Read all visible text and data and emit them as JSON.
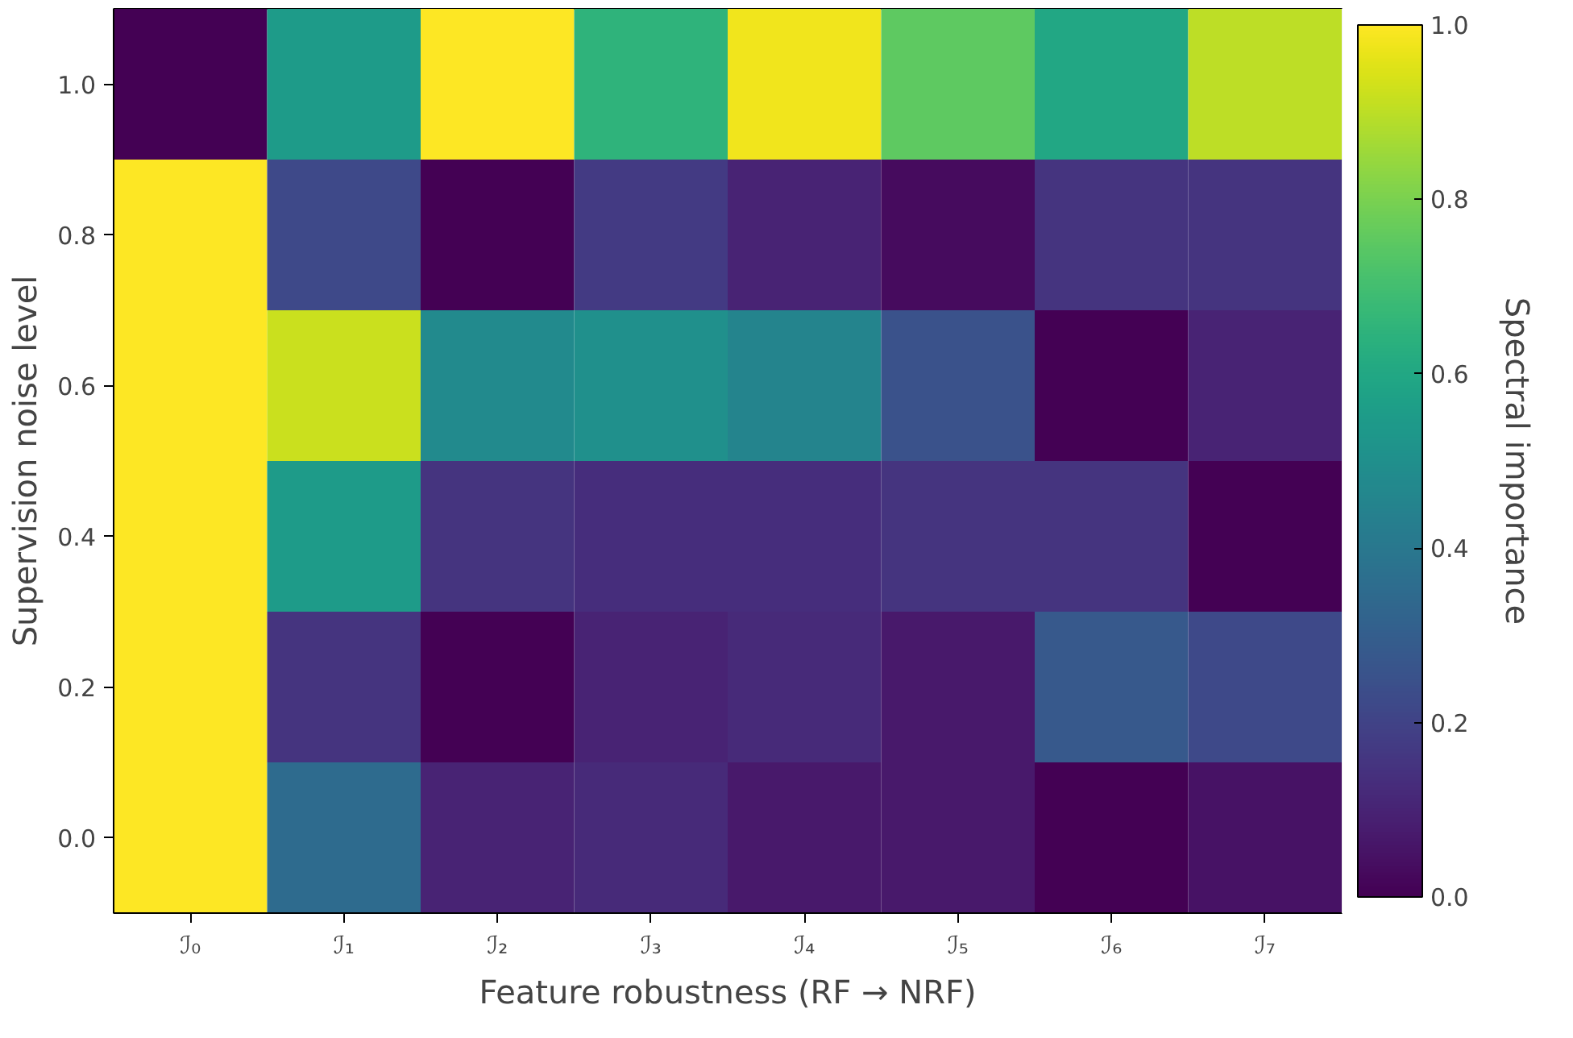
{
  "chart_data": {
    "type": "heatmap",
    "xlabel": "Feature robustness (RF → NRF)",
    "ylabel": "Supervision noise level",
    "clabel": "Spectral importance",
    "categories": [
      "ℐ₀",
      "ℐ₁",
      "ℐ₂",
      "ℐ₃",
      "ℐ₄",
      "ℐ₅",
      "ℐ₆",
      "ℐ₇"
    ],
    "y_categories": [
      "1.0",
      "0.8",
      "0.6",
      "0.4",
      "0.2",
      "0.0"
    ],
    "cells": [
      [
        0.0,
        0.55,
        1.0,
        0.65,
        0.98,
        0.75,
        0.6,
        0.9
      ],
      [
        1.0,
        0.22,
        0.0,
        0.17,
        0.1,
        0.03,
        0.15,
        0.15
      ],
      [
        1.0,
        0.92,
        0.48,
        0.5,
        0.45,
        0.25,
        0.0,
        0.1
      ],
      [
        1.0,
        0.55,
        0.15,
        0.13,
        0.13,
        0.15,
        0.15,
        0.0
      ],
      [
        1.0,
        0.15,
        0.0,
        0.1,
        0.12,
        0.07,
        0.28,
        0.22
      ],
      [
        1.0,
        0.35,
        0.1,
        0.12,
        0.07,
        0.07,
        0.0,
        0.05
      ]
    ],
    "clim": [
      0,
      1
    ],
    "cticks": [
      {
        "value": 0,
        "label": "0.0"
      },
      0.2,
      0.4,
      0.6,
      0.8,
      {
        "value": 1,
        "label": "1.0"
      }
    ]
  }
}
